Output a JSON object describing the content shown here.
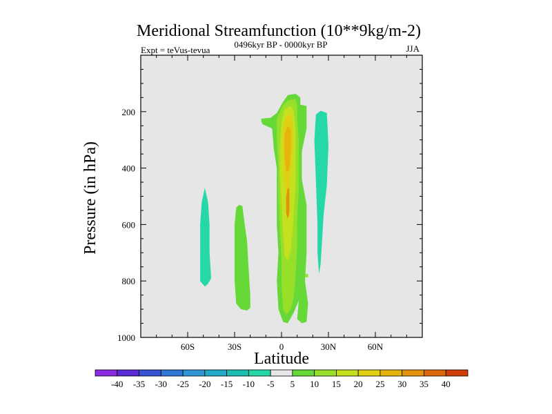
{
  "chart_data": {
    "type": "contour",
    "title": "Meridional Streamfunction (10**9kg/m-2)",
    "subtitle_left": "Expt = teVus-tevua",
    "subtitle_center": "0496kyr BP - 0000kyr BP",
    "subtitle_right": "JJA",
    "xlabel": "Latitude",
    "ylabel": "Pressure (in hPa)",
    "xlim": [
      -90,
      90
    ],
    "ylim": [
      1000,
      0
    ],
    "x_ticks": [
      -60,
      -30,
      0,
      30,
      60
    ],
    "x_tick_labels": [
      "60S",
      "30S",
      "0",
      "30N",
      "60N"
    ],
    "y_ticks": [
      200,
      400,
      600,
      800,
      1000
    ],
    "y_tick_labels": [
      "200",
      "400",
      "600",
      "800",
      "1000"
    ],
    "background_color": "#e6e6e6",
    "colorbar": {
      "labels": [
        "-40",
        "-35",
        "-30",
        "-25",
        "-20",
        "-15",
        "-10",
        "-5",
        "5",
        "10",
        "15",
        "20",
        "25",
        "30",
        "35",
        "40"
      ],
      "colors": [
        "#8a2be2",
        "#5b2bd8",
        "#3a53d4",
        "#2f78d8",
        "#2e94d4",
        "#22a9c6",
        "#1bbfb0",
        "#26d7a8",
        "#e6e6e6",
        "#66d838",
        "#98df2a",
        "#c4e01e",
        "#e0cf12",
        "#e5b40e",
        "#e2910c",
        "#dc680a",
        "#d23e08"
      ]
    },
    "regions": [
      {
        "level": "5 to 10",
        "color": "#66d838",
        "points": [
          [
            -13,
            225
          ],
          [
            -7,
            222
          ],
          [
            -3,
            205
          ],
          [
            1,
            165
          ],
          [
            4,
            141
          ],
          [
            9,
            137
          ],
          [
            12,
            150
          ],
          [
            12,
            175
          ],
          [
            16,
            180
          ],
          [
            16,
            260
          ],
          [
            13,
            340
          ],
          [
            13,
            440
          ],
          [
            16,
            530
          ],
          [
            16,
            700
          ],
          [
            15,
            800
          ],
          [
            17,
            880
          ],
          [
            16,
            945
          ],
          [
            13,
            950
          ],
          [
            10,
            935
          ],
          [
            11,
            870
          ],
          [
            8,
            910
          ],
          [
            4,
            950
          ],
          [
            1,
            945
          ],
          [
            -2,
            900
          ],
          [
            -3,
            800
          ],
          [
            -2,
            700
          ],
          [
            -3,
            600
          ],
          [
            -3,
            500
          ],
          [
            -3,
            400
          ],
          [
            -5,
            330
          ],
          [
            -6,
            260
          ],
          [
            -12,
            245
          ],
          [
            -13,
            235
          ]
        ]
      },
      {
        "level": "5 to 10",
        "color": "#66d838",
        "points": [
          [
            -29,
            540
          ],
          [
            -27,
            530
          ],
          [
            -25,
            535
          ],
          [
            -24,
            580
          ],
          [
            -22,
            660
          ],
          [
            -21,
            760
          ],
          [
            -20,
            850
          ],
          [
            -20,
            895
          ],
          [
            -22,
            905
          ],
          [
            -26,
            900
          ],
          [
            -29,
            880
          ],
          [
            -30,
            800
          ],
          [
            -30,
            700
          ],
          [
            -30,
            600
          ]
        ]
      },
      {
        "level": "-10 to -5",
        "color": "#26d7a8",
        "points": [
          [
            -51,
            520
          ],
          [
            -49,
            470
          ],
          [
            -47,
            520
          ],
          [
            -46,
            600
          ],
          [
            -46,
            700
          ],
          [
            -45,
            790
          ],
          [
            -47,
            810
          ],
          [
            -49,
            820
          ],
          [
            -52,
            800
          ],
          [
            -52,
            700
          ],
          [
            -52,
            600
          ]
        ]
      },
      {
        "level": "-10 to -5",
        "color": "#26d7a8",
        "points": [
          [
            22,
            210
          ],
          [
            25,
            197
          ],
          [
            29,
            205
          ],
          [
            30,
            320
          ],
          [
            29,
            460
          ],
          [
            27,
            560
          ],
          [
            26,
            650
          ],
          [
            25,
            740
          ],
          [
            24,
            775
          ],
          [
            23,
            700
          ],
          [
            23,
            600
          ],
          [
            22,
            450
          ],
          [
            21,
            300
          ]
        ]
      },
      {
        "level": "10 to 15",
        "color": "#98df2a",
        "points": [
          [
            -3,
            225
          ],
          [
            1,
            175
          ],
          [
            5,
            158
          ],
          [
            9,
            155
          ],
          [
            10,
            180
          ],
          [
            10,
            230
          ],
          [
            11,
            300
          ],
          [
            11,
            380
          ],
          [
            11,
            480
          ],
          [
            10,
            580
          ],
          [
            10,
            680
          ],
          [
            9,
            780
          ],
          [
            8,
            850
          ],
          [
            6,
            900
          ],
          [
            3,
            920
          ],
          [
            1,
            900
          ],
          [
            0,
            820
          ],
          [
            0,
            720
          ],
          [
            -1,
            620
          ],
          [
            -2,
            500
          ],
          [
            -2,
            400
          ],
          [
            -3,
            300
          ]
        ]
      },
      {
        "level": "10 to 15",
        "color": "#98df2a",
        "points": [
          [
            15,
            775
          ],
          [
            17,
            775
          ],
          [
            17,
            787
          ],
          [
            15,
            787
          ]
        ]
      },
      {
        "level": "15 to 20",
        "color": "#c4e01e",
        "points": [
          [
            0,
            240
          ],
          [
            2,
            190
          ],
          [
            6,
            180
          ],
          [
            8,
            200
          ],
          [
            9,
            270
          ],
          [
            9,
            350
          ],
          [
            9,
            450
          ],
          [
            8,
            550
          ],
          [
            7,
            630
          ],
          [
            6,
            690
          ],
          [
            4,
            730
          ],
          [
            2,
            710
          ],
          [
            1,
            630
          ],
          [
            0,
            530
          ],
          [
            -1,
            420
          ],
          [
            -1,
            320
          ]
        ]
      },
      {
        "level": "20 to 25",
        "color": "#e0cf12",
        "points": [
          [
            1,
            260
          ],
          [
            3,
            215
          ],
          [
            6,
            210
          ],
          [
            7,
            250
          ],
          [
            7,
            330
          ],
          [
            6,
            410
          ],
          [
            5,
            480
          ],
          [
            3,
            500
          ],
          [
            2,
            450
          ],
          [
            1,
            370
          ]
        ]
      },
      {
        "level": "25 to 30",
        "color": "#e5b40e",
        "points": [
          [
            2,
            280
          ],
          [
            4,
            250
          ],
          [
            6,
            265
          ],
          [
            6,
            340
          ],
          [
            5,
            405
          ],
          [
            3,
            415
          ],
          [
            2,
            360
          ]
        ]
      },
      {
        "level": "30 to 35",
        "color": "#e2910c",
        "points": [
          [
            4,
            470
          ],
          [
            5,
            475
          ],
          [
            5,
            560
          ],
          [
            4,
            580
          ],
          [
            3,
            560
          ],
          [
            3,
            500
          ]
        ]
      }
    ]
  }
}
